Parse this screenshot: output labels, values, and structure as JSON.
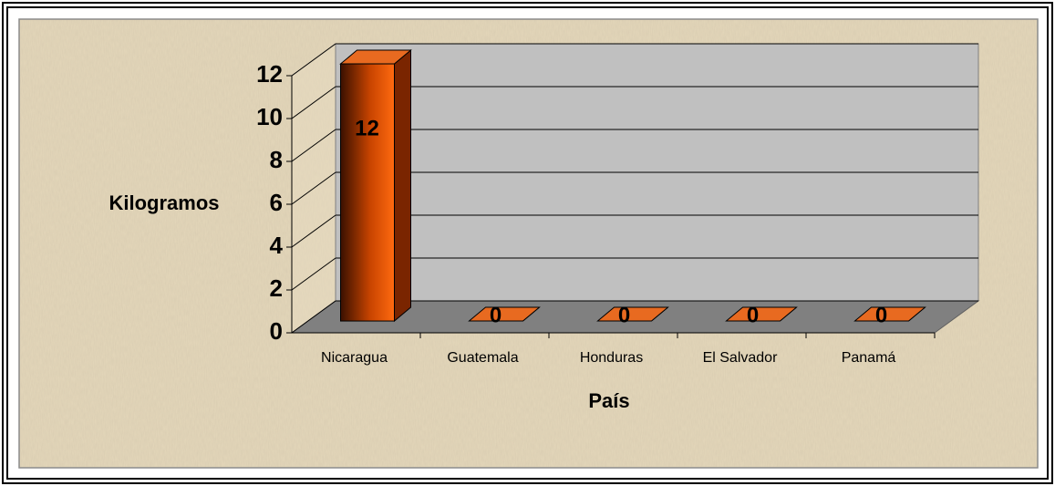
{
  "chart_data": {
    "type": "bar3d",
    "categories": [
      "Nicaragua",
      "Guatemala",
      "Honduras",
      "El Salvador",
      "Panamá"
    ],
    "values": [
      12,
      0,
      0,
      0,
      0
    ],
    "color": "#ff6600",
    "x_label": "País",
    "y_label": "Kilogramos",
    "ylim": [
      0,
      12
    ],
    "yticks": [
      0,
      2,
      4,
      6,
      8,
      10,
      12
    ],
    "grid": true
  }
}
